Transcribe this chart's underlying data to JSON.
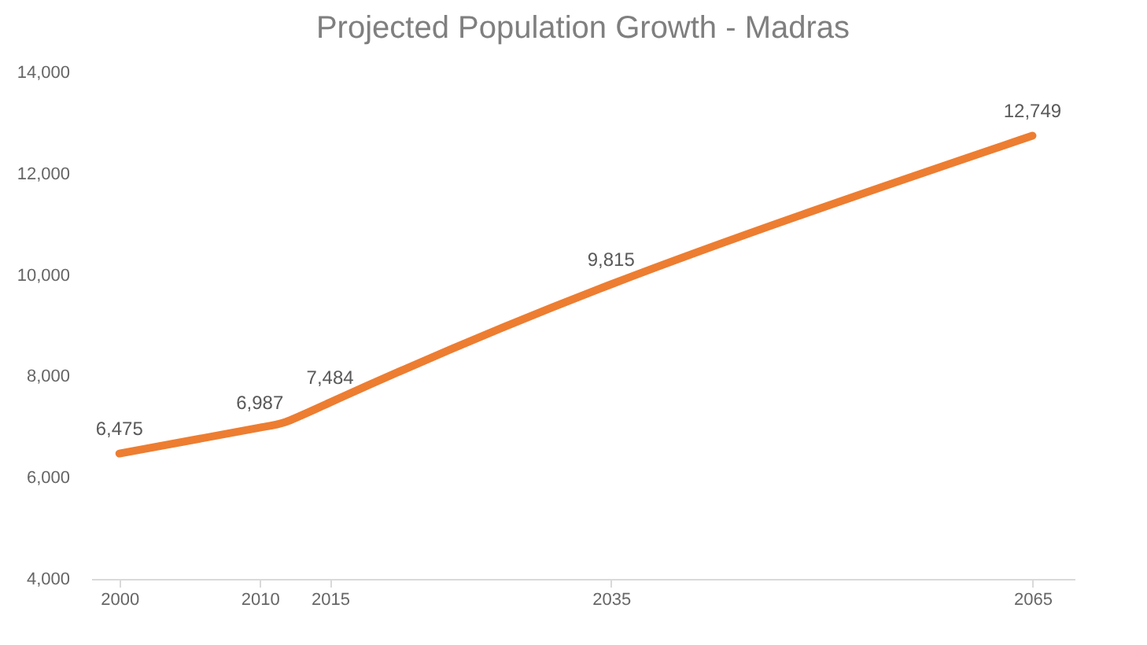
{
  "chart_data": {
    "type": "line",
    "title": "Projected Population Growth - Madras",
    "x": [
      2000,
      2010,
      2015,
      2035,
      2065
    ],
    "series": [
      {
        "color": "#ed7d31",
        "values": [
          6475,
          6987,
          7484,
          9815,
          12749
        ],
        "value_labels": [
          "6,475",
          "6,987",
          "7,484",
          "9,815",
          "12,749"
        ]
      }
    ],
    "xlim": [
      1998,
      2068
    ],
    "xticks": [
      2000,
      2010,
      2015,
      2035,
      2065
    ],
    "ylim": [
      4000,
      14000
    ],
    "yticks": [
      {
        "value": 4000,
        "label": "4,000"
      },
      {
        "value": 6000,
        "label": "6,000"
      },
      {
        "value": 8000,
        "label": "8,000"
      },
      {
        "value": 10000,
        "label": "10,000"
      },
      {
        "value": 12000,
        "label": "12,000"
      },
      {
        "value": 14000,
        "label": "14,000"
      }
    ],
    "grid": false,
    "marker": "none",
    "line_style": "solid"
  }
}
